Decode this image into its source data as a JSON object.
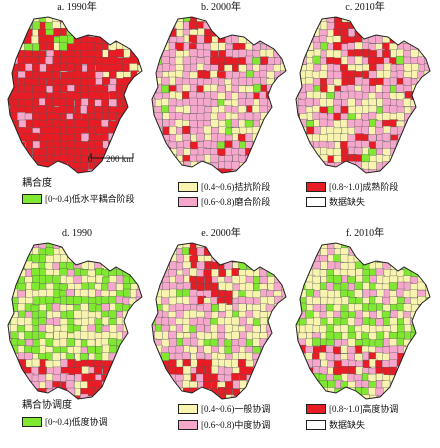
{
  "top": {
    "panels": [
      {
        "title": "a. 1990年",
        "scheme": "coupling_1990"
      },
      {
        "title": "b. 2000年",
        "scheme": "coupling_2000"
      },
      {
        "title": "c. 2010年",
        "scheme": "coupling_2010"
      }
    ],
    "legend": {
      "heading": "耦合度",
      "items": [
        {
          "label": "[0~0.4)低水平耦合阶段",
          "color": "#80e830"
        },
        {
          "label": "[0.4~0.6)拮抗阶段",
          "color": "#f8f4b0"
        },
        {
          "label": "[0.8~1.0]成熟阶段",
          "color": "#e81c24"
        },
        {
          "label": "[0.6~0.8)磨合阶段",
          "color": "#f6a8cc"
        },
        {
          "label": "数据缺失",
          "color": "#ffffff"
        }
      ]
    },
    "scale_bar": {
      "zero": "0",
      "distance": "200 km"
    }
  },
  "bottom": {
    "panels": [
      {
        "title": "d. 1990",
        "scheme": "coord_1990"
      },
      {
        "title": "e. 2000年",
        "scheme": "coord_2000"
      },
      {
        "title": "f. 2010年",
        "scheme": "coord_2010"
      }
    ],
    "legend": {
      "heading": "耦合协调度",
      "items": [
        {
          "label": "[0~0.4)低度协调",
          "color": "#80e830"
        },
        {
          "label": "[0.4~0.6)一般协调",
          "color": "#f8f4b0"
        },
        {
          "label": "[0.8~1.0]高度协调",
          "color": "#e81c24"
        },
        {
          "label": "[0.6~0.8)中度协调",
          "color": "#f6a8cc"
        },
        {
          "label": "数据缺失",
          "color": "#ffffff"
        }
      ]
    }
  }
}
